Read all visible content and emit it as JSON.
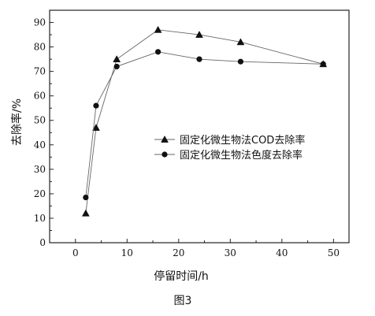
{
  "chart_data": {
    "type": "line",
    "caption": "图3",
    "xlabel": "停留时间/h",
    "ylabel": "去除率/%",
    "xlim": [
      -5,
      53
    ],
    "ylim": [
      0,
      95
    ],
    "x_ticks": [
      0,
      10,
      20,
      30,
      40,
      50
    ],
    "y_ticks": [
      0,
      10,
      20,
      30,
      40,
      50,
      60,
      70,
      80,
      90
    ],
    "grid": false,
    "legend_position": "center-right",
    "series": [
      {
        "name": "固定化微生物法COD去除率",
        "marker": "triangle",
        "x": [
          2,
          4,
          8,
          16,
          24,
          32,
          48
        ],
        "y": [
          12,
          47,
          75,
          87,
          85,
          82,
          73
        ]
      },
      {
        "name": "固定化微生物法色度去除率",
        "marker": "circle",
        "x": [
          2,
          4,
          8,
          16,
          24,
          32,
          48
        ],
        "y": [
          18.5,
          56,
          72,
          78,
          75,
          74,
          73
        ]
      }
    ]
  }
}
